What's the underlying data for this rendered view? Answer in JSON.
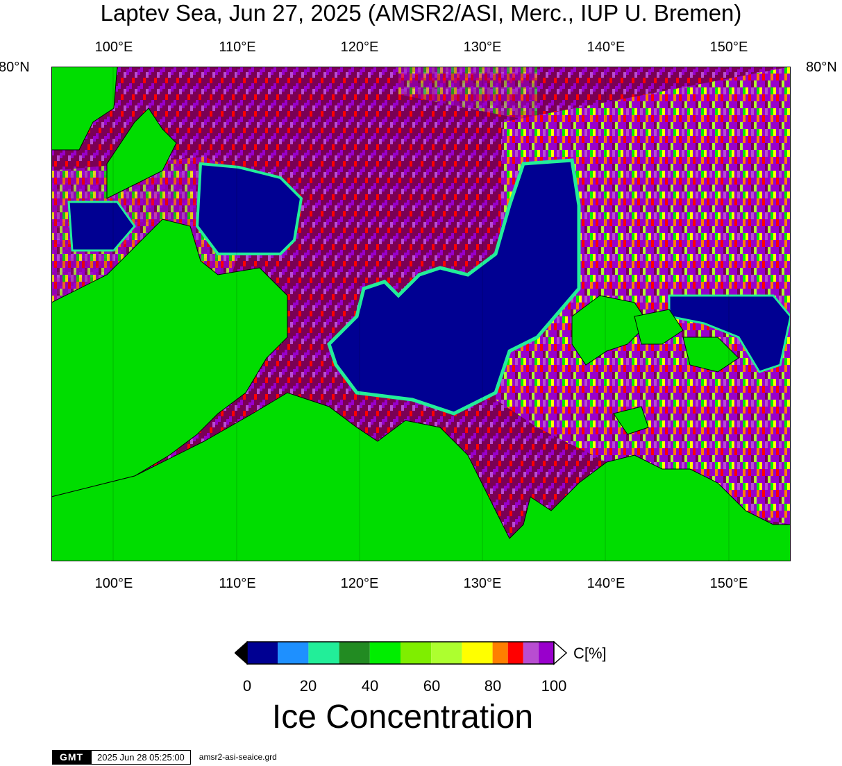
{
  "title": "Laptev Sea, Jun 27, 2025 (AMSR2/ASI, Merc., IUP U. Bremen)",
  "map": {
    "lon_labels": [
      "100°E",
      "110°E",
      "120°E",
      "130°E",
      "140°E",
      "150°E"
    ],
    "lat_label": "80°N",
    "lon_range": [
      95,
      155
    ],
    "land_color": "#00dd00",
    "grid_line_color": "#000000"
  },
  "legend": {
    "unit": "C[%]",
    "title": "Ice Concentration",
    "ticks": [
      "0",
      "20",
      "40",
      "60",
      "80",
      "100"
    ],
    "colors": [
      "#000092",
      "#1e90ff",
      "#22ee99",
      "#228b22",
      "#00ee00",
      "#7fee00",
      "#adff2f",
      "#ffff00",
      "#ff7f00",
      "#ff0000",
      "#b84dd1",
      "#9900cc"
    ],
    "open_water_color": "#000092",
    "high_ice_color": "#7a0055"
  },
  "footer": {
    "logo": "GMT",
    "timestamp": "2025 Jun 28 05:25:00",
    "grid_file": "amsr2-asi-seaice.grd"
  }
}
